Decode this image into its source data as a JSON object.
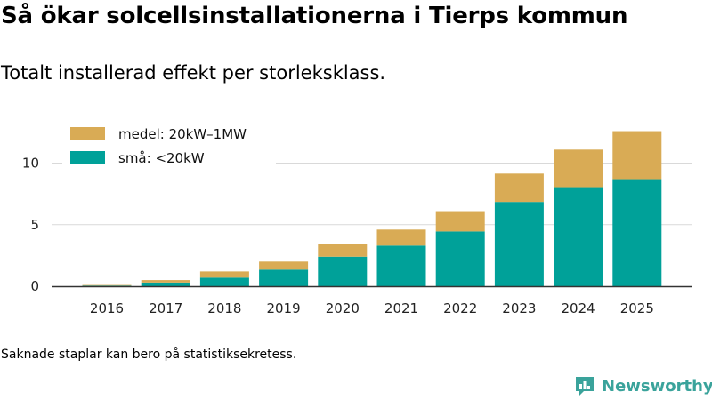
{
  "title": "Så ökar solcellsinstallationerna i Tierps kommun",
  "subtitle": "Totalt installerad effekt per storleksklass.",
  "footnote": "Saknade staplar kan bero på statistiksekretess.",
  "logo": {
    "text": "Newsworthy",
    "color": "#3aa39b",
    "icon": "newsworthy-logo-icon"
  },
  "chart_data": {
    "type": "bar",
    "stacked": true,
    "categories": [
      "2016",
      "2017",
      "2018",
      "2019",
      "2020",
      "2021",
      "2022",
      "2023",
      "2024",
      "2025"
    ],
    "series": [
      {
        "name": "små: <20kW",
        "color": "#00a199",
        "values": [
          0.05,
          0.3,
          0.7,
          1.35,
          2.4,
          3.3,
          4.45,
          6.85,
          8.05,
          8.7
        ]
      },
      {
        "name": "medel: 20kW–1MW",
        "color": "#d9ab55",
        "values": [
          0.05,
          0.2,
          0.5,
          0.65,
          1.0,
          1.3,
          1.65,
          2.3,
          3.05,
          3.9
        ]
      }
    ],
    "legend_order": [
      1,
      0
    ],
    "legend_position": "top-left",
    "yticks": [
      0,
      5,
      10
    ],
    "ylim": [
      0,
      13
    ],
    "grid": true,
    "xlabel": "",
    "ylabel": ""
  }
}
